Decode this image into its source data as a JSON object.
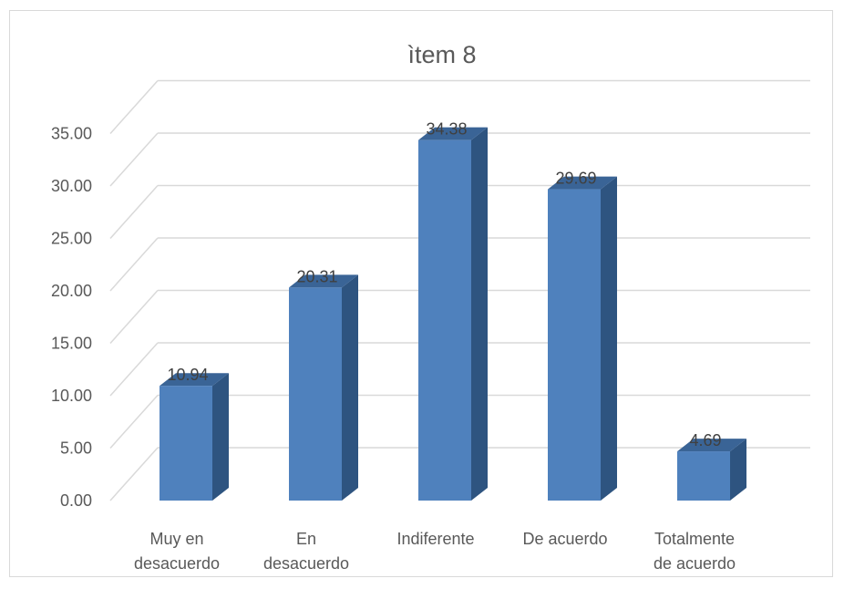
{
  "chart_data": {
    "type": "bar",
    "title": "ìtem 8",
    "categories": [
      [
        "Muy en",
        "desacuerdo"
      ],
      [
        "En",
        "desacuerdo"
      ],
      [
        "Indiferente"
      ],
      [
        "De acuerdo"
      ],
      [
        "Totalmente",
        "de acuerdo"
      ]
    ],
    "values": [
      10.94,
      20.31,
      34.38,
      29.69,
      4.69
    ],
    "data_labels": [
      "10.94",
      "20.31",
      "34.38",
      "29.69",
      "4.69"
    ],
    "y_ticks": [
      "0.00",
      "5.00",
      "10.00",
      "15.00",
      "20.00",
      "25.00",
      "30.00",
      "35.00"
    ],
    "ylim": [
      0,
      35
    ],
    "grid": true,
    "style": "3d-column",
    "colors": {
      "front": "#4f81bd",
      "side": "#2e5480",
      "top": "#3a6496",
      "grid": "#d9d9d9",
      "text": "#595959"
    }
  }
}
